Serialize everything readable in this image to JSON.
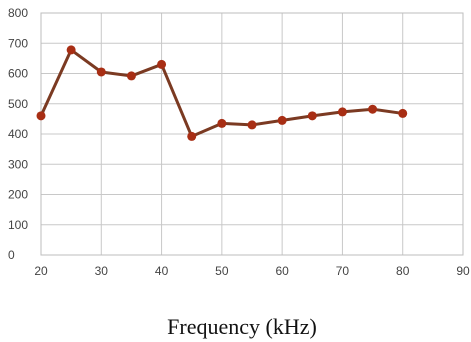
{
  "chart_data": {
    "type": "line",
    "title": "",
    "xlabel": "Frequency (kHz)",
    "ylabel": "",
    "xlim": [
      20,
      90
    ],
    "ylim": [
      0,
      800
    ],
    "x_ticks": [
      "20",
      "30",
      "40",
      "50",
      "60",
      "70",
      "80",
      "90"
    ],
    "y_ticks": [
      "0",
      "100",
      "200",
      "300",
      "400",
      "500",
      "600",
      "700",
      "800"
    ],
    "grid": true,
    "legend": "none",
    "series": [
      {
        "x": [
          20,
          25,
          30,
          35,
          40,
          45,
          50,
          55,
          60,
          65,
          70,
          75,
          80
        ],
        "values": [
          460,
          678,
          605,
          592,
          630,
          392,
          435,
          430,
          445,
          460,
          473,
          482,
          468
        ],
        "line_color": "#7b3a22",
        "marker_color": "#a82e14"
      }
    ]
  }
}
